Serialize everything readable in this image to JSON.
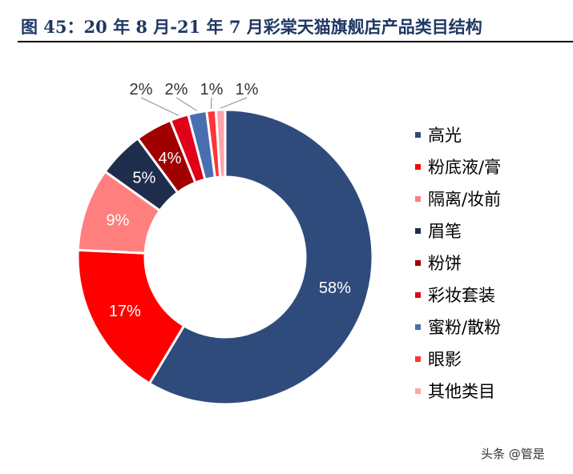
{
  "title": "图 45：20 年 8 月-21 年 7 月彩棠天猫旗舰店产品类目结构",
  "watermark": "头条 @管是",
  "chart_data": {
    "type": "pie",
    "variant": "donut",
    "title": "",
    "categories": [
      "高光",
      "粉底液/膏",
      "隔离/妆前",
      "眉笔",
      "粉饼",
      "彩妆套装",
      "蜜粉/散粉",
      "眼影",
      "其他类目"
    ],
    "values": [
      58,
      17,
      9,
      5,
      4,
      2,
      2,
      1,
      1
    ],
    "labels": [
      "58%",
      "17%",
      "9%",
      "5%",
      "4%",
      "2%",
      "2%",
      "1%",
      "1%"
    ],
    "colors": [
      "#2f4b7c",
      "#ff0000",
      "#ff7f7f",
      "#1f2d4d",
      "#a00000",
      "#e0001a",
      "#4a6fb0",
      "#ff3535",
      "#ffa3aa"
    ],
    "legend_position": "right"
  }
}
